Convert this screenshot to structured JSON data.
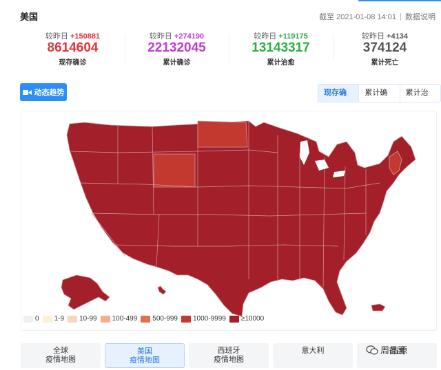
{
  "header": {
    "country": "美国",
    "asof": "截至 2021-01-08 14:01",
    "help_label": "数据说明"
  },
  "stats": [
    {
      "cmp_label": "较昨日",
      "delta": "+150881",
      "value": "8614604",
      "label": "现存确诊",
      "color": "#e8333a"
    },
    {
      "cmp_label": "较昨日",
      "delta": "+274190",
      "value": "22132045",
      "label": "累计确诊",
      "color": "#c23ad6"
    },
    {
      "cmp_label": "较昨日",
      "delta": "+119175",
      "value": "13143317",
      "label": "累计治愈",
      "color": "#2cae45"
    },
    {
      "cmp_label": "较昨日",
      "delta": "+4134",
      "value": "374124",
      "label": "累计死亡",
      "color": "#555555"
    }
  ],
  "trend_button": {
    "label": "动态趋势",
    "icon": "video-camera-icon"
  },
  "map_tabs": [
    {
      "label": "现存确诊",
      "active": true
    },
    {
      "label": "累计确诊",
      "active": false
    },
    {
      "label": "累计治愈",
      "active": false
    }
  ],
  "map": {
    "colors": {
      "high": "#a31f2a",
      "mid": "#c3392f",
      "border": "#d8a6a6"
    }
  },
  "legend": [
    {
      "label": "0",
      "color": "#f0f0f0"
    },
    {
      "label": "1-9",
      "color": "#fdf0d5"
    },
    {
      "label": "10-99",
      "color": "#fbd6ba"
    },
    {
      "label": "100-499",
      "color": "#f4b08c"
    },
    {
      "label": "500-999",
      "color": "#e37151"
    },
    {
      "label": "1000-9999",
      "color": "#c23a31"
    },
    {
      "label": "≥10000",
      "color": "#a31f2a"
    }
  ],
  "bottom_tabs": [
    {
      "line1": "全球",
      "line2": "疫情地图",
      "active": false
    },
    {
      "line1": "美国",
      "line2": "疫情地图",
      "active": true
    },
    {
      "line1": "西班牙",
      "line2": "疫情地图",
      "active": false
    },
    {
      "line1": "意大利",
      "line2": "",
      "active": false
    },
    {
      "line1": "德国",
      "line2": "",
      "active": false
    }
  ],
  "watermark": "周品源"
}
